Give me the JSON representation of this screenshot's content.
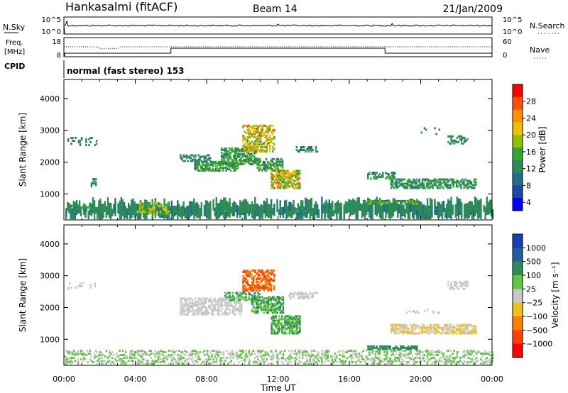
{
  "header": {
    "station": "Hankasalmi (fitACF)",
    "beam": "Beam 14",
    "date": "21/Jan/2009"
  },
  "top_panels": {
    "nsky_label": "N.Sky",
    "nsky_ticks": [
      "10^5",
      "10^0"
    ],
    "nsearch_label": "N.Search",
    "nsearch_ticks": [
      "10^5",
      "10^0"
    ],
    "freq_label_line1": "Freq.",
    "freq_label_line2": "[MHz]",
    "freq_ticks": [
      "18",
      "8"
    ],
    "nave_label": "Nave",
    "nave_ticks": [
      "60",
      "0"
    ],
    "cpid_label": "CPID",
    "cpid_text": "normal (fast stereo) 153"
  },
  "colorbars": {
    "power": {
      "label": "Power [dB]",
      "ticks": [
        "28",
        "24",
        "20",
        "16",
        "12",
        "8",
        "4"
      ],
      "colors": [
        "#ff0000",
        "#ff5000",
        "#ff9000",
        "#f0c000",
        "#90c000",
        "#30a830",
        "#2e8b57",
        "#1e6e8e",
        "#1848a8",
        "#0000ff"
      ]
    },
    "velocity": {
      "label": "Velocity [m s⁻¹]",
      "ticks": [
        "1000",
        "500",
        "100",
        "25",
        "−25",
        "−100",
        "−500",
        "−1000"
      ],
      "colors": [
        "#1a3fb0",
        "#2060a0",
        "#2e8b57",
        "#60c840",
        "#c8c8c8",
        "#f0c020",
        "#ff8000",
        "#ff4000",
        "#ff0000"
      ]
    }
  },
  "chart_data": [
    {
      "type": "heatmap",
      "title": "",
      "parameter": "Power [dB]",
      "xlabel": "Time UT",
      "ylabel": "Slant Range [km]",
      "xlim": [
        0,
        24
      ],
      "ylim": [
        180,
        4600
      ],
      "xticks": [
        "00:00",
        "04:00",
        "08:00",
        "12:00",
        "16:00",
        "20:00",
        "00:00"
      ],
      "yticks": [
        1000,
        2000,
        3000,
        4000
      ],
      "echo_regions": [
        {
          "t0": 0,
          "t1": 24,
          "r0": 200,
          "r1": 500,
          "density": 0.35,
          "scale": [
            6,
            10
          ],
          "sparse": true
        },
        {
          "t0": 0.3,
          "t1": 1.5,
          "r0": 450,
          "r1": 620,
          "density": 0.5,
          "scale": [
            6,
            12
          ]
        },
        {
          "t0": 4.2,
          "t1": 5.8,
          "r0": 350,
          "r1": 700,
          "density": 0.5,
          "scale": [
            10,
            22
          ]
        },
        {
          "t0": 0.2,
          "t1": 1.8,
          "r0": 2500,
          "r1": 2750,
          "density": 0.2,
          "scale": [
            6,
            8
          ]
        },
        {
          "t0": 1.5,
          "t1": 1.8,
          "r0": 1200,
          "r1": 1450,
          "density": 0.5,
          "scale": [
            6,
            9
          ]
        },
        {
          "t0": 6.5,
          "t1": 8.2,
          "r0": 2000,
          "r1": 2200,
          "density": 0.45,
          "scale": [
            6,
            10
          ]
        },
        {
          "t0": 7.3,
          "t1": 9.8,
          "r0": 1700,
          "r1": 2000,
          "density": 0.65,
          "scale": [
            6,
            14
          ]
        },
        {
          "t0": 8.8,
          "t1": 10.8,
          "r0": 1900,
          "r1": 2400,
          "density": 0.65,
          "scale": [
            6,
            14
          ]
        },
        {
          "t0": 10.0,
          "t1": 11.8,
          "r0": 2300,
          "r1": 3150,
          "density": 0.5,
          "scale": [
            10,
            24
          ]
        },
        {
          "t0": 10.8,
          "t1": 12.3,
          "r0": 1700,
          "r1": 2100,
          "density": 0.6,
          "scale": [
            6,
            14
          ]
        },
        {
          "t0": 11.6,
          "t1": 13.2,
          "r0": 1150,
          "r1": 1700,
          "density": 0.65,
          "scale": [
            8,
            24
          ]
        },
        {
          "t0": 13.0,
          "t1": 14.2,
          "r0": 2300,
          "r1": 2450,
          "density": 0.3,
          "scale": [
            6,
            8
          ]
        },
        {
          "t0": 17.0,
          "t1": 18.5,
          "r0": 1450,
          "r1": 1650,
          "density": 0.55,
          "scale": [
            6,
            12
          ]
        },
        {
          "t0": 17.0,
          "t1": 19.8,
          "r0": 650,
          "r1": 780,
          "density": 0.7,
          "scale": [
            6,
            16
          ]
        },
        {
          "t0": 18.3,
          "t1": 23.1,
          "r0": 1150,
          "r1": 1450,
          "density": 0.6,
          "scale": [
            6,
            12
          ]
        },
        {
          "t0": 21.5,
          "t1": 22.6,
          "r0": 2550,
          "r1": 2800,
          "density": 0.45,
          "scale": [
            6,
            10
          ]
        },
        {
          "t0": 20.0,
          "t1": 21.0,
          "r0": 2850,
          "r1": 3050,
          "density": 0.15,
          "scale": [
            6,
            8
          ]
        }
      ]
    },
    {
      "type": "heatmap",
      "title": "",
      "parameter": "Velocity [m s⁻¹]",
      "xlabel": "Time UT",
      "ylabel": "Slant Range [km]",
      "xlim": [
        0,
        24
      ],
      "ylim": [
        180,
        4600
      ],
      "xticks": [
        "00:00",
        "04:00",
        "08:00",
        "12:00",
        "16:00",
        "20:00",
        "00:00"
      ],
      "yticks": [
        1000,
        2000,
        3000,
        4000
      ],
      "echo_regions": [
        {
          "t0": 0,
          "t1": 24,
          "r0": 200,
          "r1": 650,
          "density": 0.35,
          "vel": [
            3,
            4
          ]
        },
        {
          "t0": 0.2,
          "t1": 1.8,
          "r0": 2500,
          "r1": 2750,
          "density": 0.2,
          "vel": [
            4,
            4
          ]
        },
        {
          "t0": 6.5,
          "t1": 10.0,
          "r0": 1750,
          "r1": 2250,
          "density": 0.55,
          "vel": [
            4,
            4
          ]
        },
        {
          "t0": 9.0,
          "t1": 11.0,
          "r0": 2200,
          "r1": 2450,
          "density": 0.55,
          "vel": [
            2,
            3
          ]
        },
        {
          "t0": 10.0,
          "t1": 11.8,
          "r0": 2500,
          "r1": 3150,
          "density": 0.55,
          "vel": [
            6,
            7
          ]
        },
        {
          "t0": 10.5,
          "t1": 12.3,
          "r0": 1800,
          "r1": 2300,
          "density": 0.6,
          "vel": [
            2,
            3
          ]
        },
        {
          "t0": 11.6,
          "t1": 13.2,
          "r0": 1150,
          "r1": 1700,
          "density": 0.7,
          "vel": [
            2,
            3
          ]
        },
        {
          "t0": 12.5,
          "t1": 14.2,
          "r0": 2250,
          "r1": 2450,
          "density": 0.4,
          "vel": [
            4,
            4
          ]
        },
        {
          "t0": 17.0,
          "t1": 19.8,
          "r0": 650,
          "r1": 780,
          "density": 0.7,
          "vel": [
            2,
            2
          ]
        },
        {
          "t0": 18.3,
          "t1": 23.1,
          "r0": 1150,
          "r1": 1450,
          "density": 0.6,
          "vel": [
            4,
            5
          ]
        },
        {
          "t0": 21.5,
          "t1": 22.6,
          "r0": 2550,
          "r1": 2800,
          "density": 0.45,
          "vel": [
            4,
            4
          ]
        },
        {
          "t0": 19.0,
          "t1": 21.0,
          "r0": 1800,
          "r1": 1900,
          "density": 0.15,
          "vel": [
            4,
            4
          ]
        }
      ]
    }
  ]
}
